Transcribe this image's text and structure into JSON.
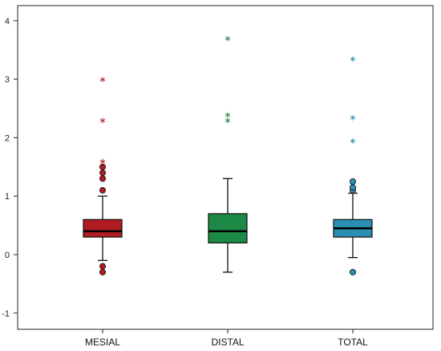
{
  "chart_data": {
    "type": "boxplot",
    "title": "",
    "xlabel": "",
    "ylabel": "",
    "ylim": [
      -1.3,
      4.2
    ],
    "yticks": [
      -1,
      0,
      1,
      2,
      3,
      4
    ],
    "grid": false,
    "legend": "none",
    "categories": [
      "MESIAL",
      "DISTAL",
      "TOTAL"
    ],
    "boxes": [
      {
        "category": "MESIAL",
        "color": "#b01c22",
        "whisker_low": -0.1,
        "q1": 0.3,
        "median": 0.4,
        "q3": 0.6,
        "whisker_high": 1.0,
        "outliers": [
          1.1,
          1.3,
          1.4,
          1.5,
          -0.2,
          -0.3
        ],
        "extremes": [
          1.6,
          2.3,
          3.0
        ]
      },
      {
        "category": "DISTAL",
        "color": "#1c8a46",
        "whisker_low": -0.3,
        "q1": 0.2,
        "median": 0.4,
        "q3": 0.7,
        "whisker_high": 1.3,
        "outliers": [],
        "extremes": [
          2.3,
          2.4,
          3.7
        ]
      },
      {
        "category": "TOTAL",
        "color": "#2a8fb0",
        "whisker_low": -0.05,
        "q1": 0.3,
        "median": 0.45,
        "q3": 0.6,
        "whisker_high": 1.05,
        "outliers": [
          1.1,
          1.15,
          1.25,
          -0.3
        ],
        "extremes": [
          1.95,
          2.35,
          3.35
        ]
      }
    ]
  }
}
